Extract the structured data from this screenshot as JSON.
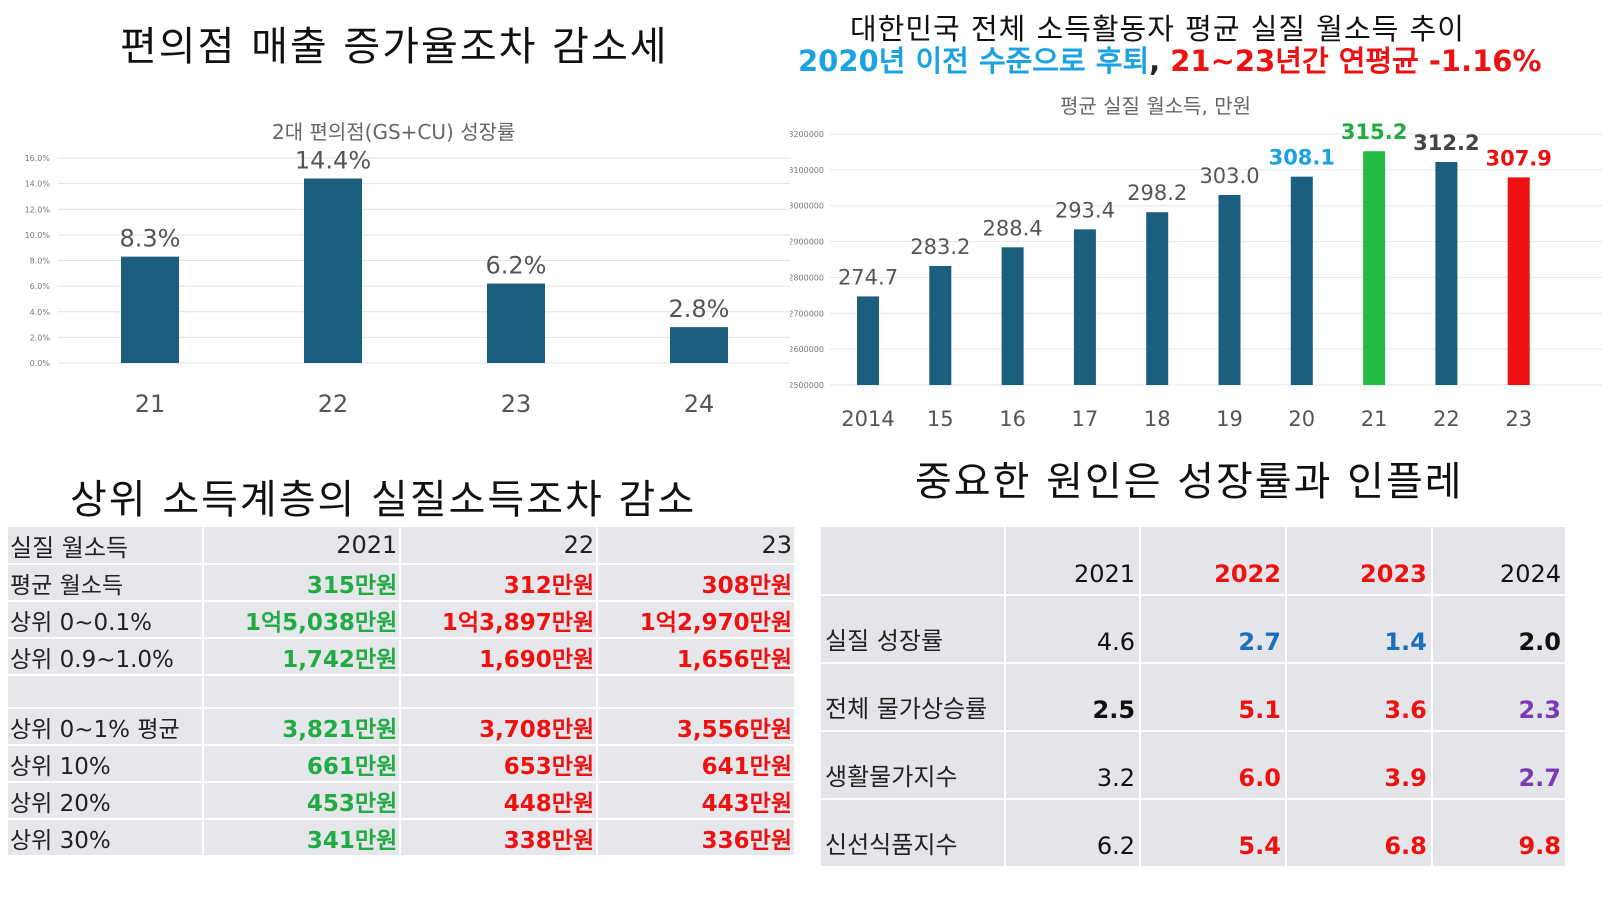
{
  "panel1": {
    "title": "편의점 매출 증가율조차 감소세",
    "chart_data": {
      "type": "bar",
      "title": "2대 편의점(GS+CU) 성장률",
      "categories": [
        "21",
        "22",
        "23",
        "24"
      ],
      "values": [
        8.3,
        14.4,
        6.2,
        2.8
      ],
      "data_labels": [
        "8.3%",
        "14.4%",
        "6.2%",
        "2.8%"
      ],
      "ylim": [
        0,
        16
      ],
      "yticks": [
        "0.0%",
        "2.0%",
        "4.0%",
        "6.0%",
        "8.0%",
        "10.0%",
        "12.0%",
        "14.0%",
        "16.0%"
      ],
      "grid": true,
      "bar_color": "#1b5e7e"
    }
  },
  "panel2": {
    "headline1": "대한민국 전체 소득활동자 평균 실질 월소득 추이",
    "headline2_blue": "2020년 이전 수준으로 후퇴",
    "headline2_sep": ", ",
    "headline2_red": "21~23년간 연평균 -1.16%",
    "chart_data": {
      "type": "bar",
      "title": "평균 실질 월소득, 만원",
      "categories": [
        "2014",
        "15",
        "16",
        "17",
        "18",
        "19",
        "20",
        "21",
        "22",
        "23"
      ],
      "values": [
        274.7,
        283.2,
        288.4,
        293.4,
        298.2,
        303.0,
        308.1,
        315.2,
        312.2,
        307.9
      ],
      "data_labels": [
        "274.7",
        "283.2",
        "288.4",
        "293.4",
        "298.2",
        "303.0",
        "308.1",
        "315.2",
        "312.2",
        "307.9"
      ],
      "ylim": [
        2500000,
        3200000
      ],
      "yticks": [
        "2500000",
        "2600000",
        "2700000",
        "2800000",
        "2900000",
        "3000000",
        "3100000",
        "3200000"
      ],
      "bar_colors": [
        "#1b5e7e",
        "#1b5e7e",
        "#1b5e7e",
        "#1b5e7e",
        "#1b5e7e",
        "#1b5e7e",
        "#1b5e7e",
        "#22bb44",
        "#1b5e7e",
        "#ee1111"
      ],
      "label_colors": [
        "#555555",
        "#555555",
        "#555555",
        "#555555",
        "#555555",
        "#555555",
        "#1aa3e0",
        "#22aa44",
        "#444444",
        "#ee1111"
      ],
      "label_bold": [
        false,
        false,
        false,
        false,
        false,
        false,
        true,
        true,
        true,
        true
      ]
    }
  },
  "panel3": {
    "title": "상위 소득계층의 실질소득조차 감소",
    "chart_data": {
      "type": "table",
      "columns": [
        "실질 월소득",
        "2021",
        "22",
        "23"
      ],
      "rows": [
        {
          "label": "평균 월소득",
          "values": [
            "315만원",
            "312만원",
            "308만원"
          ]
        },
        {
          "label": "상위 0~0.1%",
          "values": [
            "1억5,038만원",
            "1억3,897만원",
            "1억2,970만원"
          ]
        },
        {
          "label": "상위 0.9~1.0%",
          "values": [
            "1,742만원",
            "1,690만원",
            "1,656만원"
          ]
        },
        {
          "label": "",
          "values": [
            "",
            "",
            ""
          ]
        },
        {
          "label": "상위 0~1% 평균",
          "values": [
            "3,821만원",
            "3,708만원",
            "3,556만원"
          ]
        },
        {
          "label": "상위 10%",
          "values": [
            "661만원",
            "653만원",
            "641만원"
          ]
        },
        {
          "label": "상위 20%",
          "values": [
            "453만원",
            "448만원",
            "443만원"
          ]
        },
        {
          "label": "상위 30%",
          "values": [
            "341만원",
            "338만원",
            "336만원"
          ]
        }
      ],
      "colors": {
        "2021": "#22aa44",
        "22": "#ee1111",
        "23": "#ee1111"
      }
    }
  },
  "panel4": {
    "title": "중요한 원인은 성장률과 인플레",
    "chart_data": {
      "type": "table",
      "columns": [
        "",
        "2021",
        "2022",
        "2023",
        "2024"
      ],
      "rows": [
        {
          "label": "실질 성장률",
          "values": [
            "4.6",
            "2.7",
            "1.4",
            "2.0"
          ]
        },
        {
          "label": "전체 물가상승률",
          "values": [
            "2.5",
            "5.1",
            "3.6",
            "2.3"
          ]
        },
        {
          "label": "생활물가지수",
          "values": [
            "3.2",
            "6.0",
            "3.9",
            "2.7"
          ]
        },
        {
          "label": "신선식품지수",
          "values": [
            "6.2",
            "5.4",
            "6.8",
            "9.8"
          ]
        }
      ],
      "colors": {
        "red": "#ee1111",
        "blue": "#1a6fbf",
        "purple": "#7a3bb5"
      }
    }
  }
}
